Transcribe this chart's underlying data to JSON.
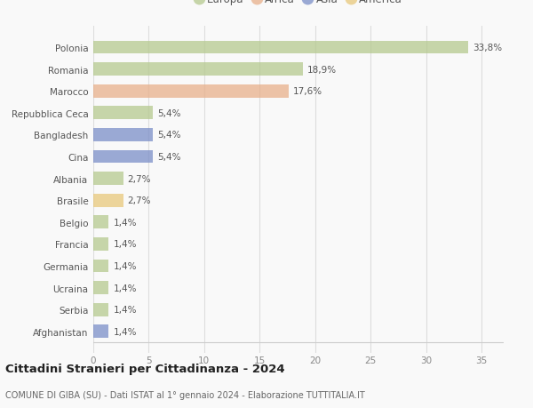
{
  "categories": [
    "Polonia",
    "Romania",
    "Marocco",
    "Repubblica Ceca",
    "Bangladesh",
    "Cina",
    "Albania",
    "Brasile",
    "Belgio",
    "Francia",
    "Germania",
    "Ucraina",
    "Serbia",
    "Afghanistan"
  ],
  "values": [
    33.8,
    18.9,
    17.6,
    5.4,
    5.4,
    5.4,
    2.7,
    2.7,
    1.4,
    1.4,
    1.4,
    1.4,
    1.4,
    1.4
  ],
  "labels": [
    "33,8%",
    "18,9%",
    "17,6%",
    "5,4%",
    "5,4%",
    "5,4%",
    "2,7%",
    "2,7%",
    "1,4%",
    "1,4%",
    "1,4%",
    "1,4%",
    "1,4%",
    "1,4%"
  ],
  "colors": [
    "#b5c98e",
    "#b5c98e",
    "#e8b08a",
    "#b5c98e",
    "#7b8ec8",
    "#7b8ec8",
    "#b5c98e",
    "#e8c87a",
    "#b5c98e",
    "#b5c98e",
    "#b5c98e",
    "#b5c98e",
    "#b5c98e",
    "#7b8ec8"
  ],
  "continent_colors": {
    "Europa": "#b5c98e",
    "Africa": "#e8b08a",
    "Asia": "#7b8ec8",
    "America": "#e8c87a"
  },
  "xlim": [
    0,
    37
  ],
  "xticks": [
    0,
    5,
    10,
    15,
    20,
    25,
    30,
    35
  ],
  "title": "Cittadini Stranieri per Cittadinanza - 2024",
  "subtitle": "COMUNE DI GIBA (SU) - Dati ISTAT al 1° gennaio 2024 - Elaborazione TUTTITALIA.IT",
  "bg_color": "#f9f9f9",
  "grid_color": "#dddddd",
  "bar_height": 0.6,
  "bar_alpha": 0.75
}
